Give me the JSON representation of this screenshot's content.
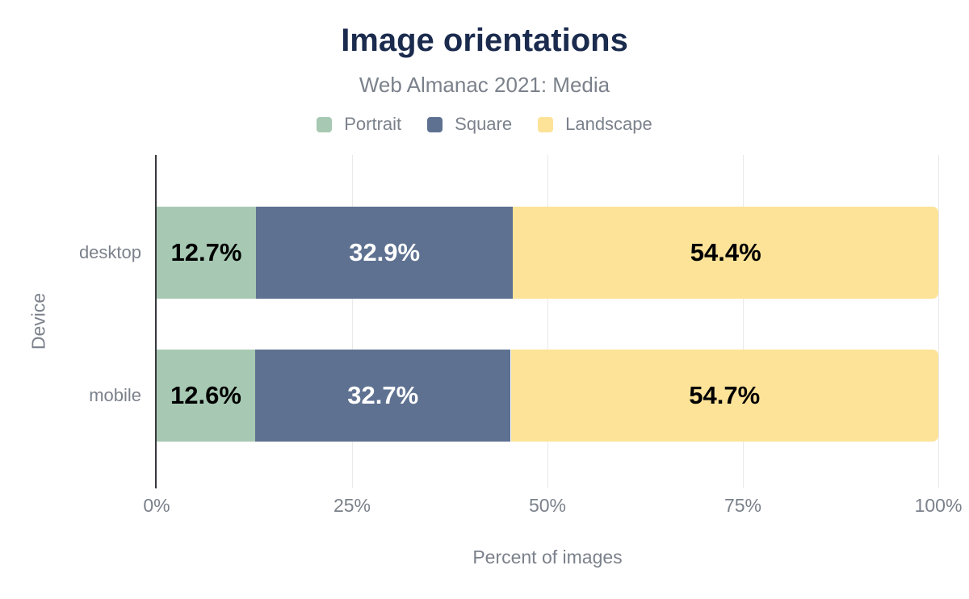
{
  "chart_data": {
    "type": "bar",
    "stacked": true,
    "orientation": "horizontal",
    "title": "Image orientations",
    "subtitle": "Web Almanac 2021: Media",
    "xlabel": "Percent of images",
    "ylabel": "Device",
    "xlim": [
      0,
      100
    ],
    "x_ticks": [
      0,
      25,
      50,
      75,
      100
    ],
    "x_tick_labels": [
      "0%",
      "25%",
      "50%",
      "75%",
      "100%"
    ],
    "grid": "vertical",
    "legend_position": "top",
    "categories": [
      "desktop",
      "mobile"
    ],
    "series": [
      {
        "name": "Portrait",
        "color": "#a7c9b3",
        "label_color": "#000000",
        "values": [
          12.7,
          12.6
        ],
        "labels": [
          "12.7%",
          "12.6%"
        ]
      },
      {
        "name": "Square",
        "color": "#5e7191",
        "label_color": "#ffffff",
        "values": [
          32.9,
          32.7
        ],
        "labels": [
          "32.9%",
          "32.7%"
        ]
      },
      {
        "name": "Landscape",
        "color": "#fde398",
        "label_color": "#000000",
        "values": [
          54.4,
          54.7
        ],
        "labels": [
          "54.4%",
          "54.7%"
        ]
      }
    ]
  },
  "style": {
    "title_color": "#1b2b4e",
    "muted_text_color": "#7b818b",
    "axis_line_color": "#37393c",
    "gridline_color": "#e9e9e9",
    "background": "#ffffff"
  }
}
